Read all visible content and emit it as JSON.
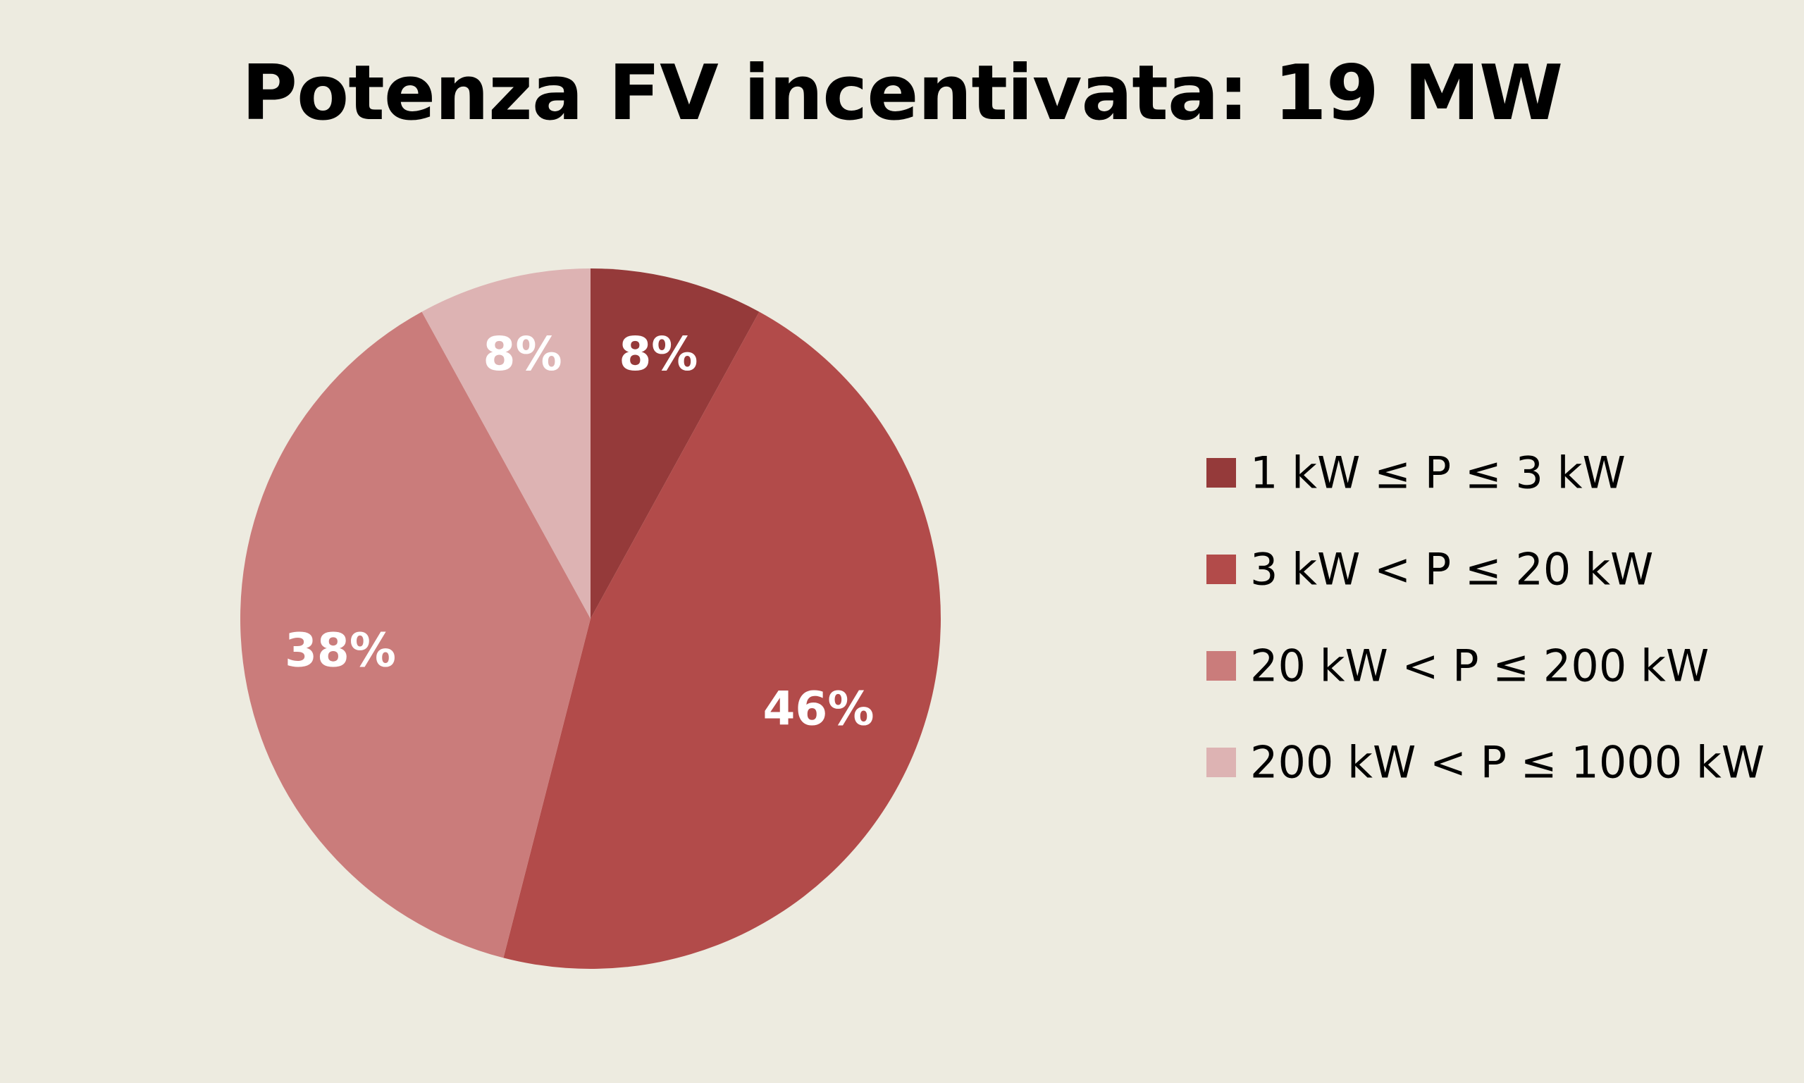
{
  "chart_data": {
    "type": "pie",
    "title": "Potenza FV incentivata: 19 MW",
    "categories": [
      "1 kW ≤ P ≤ 3 kW",
      "3 kW < P ≤ 20 kW",
      "20 kW < P ≤ 200 kW",
      "200 kW < P ≤ 1000 kW"
    ],
    "values": [
      8,
      46,
      38,
      8
    ],
    "labels": [
      "8%",
      "46%",
      "38%",
      "8%"
    ],
    "unit": "%",
    "colors": [
      "#953A3A",
      "#B24B4A",
      "#CA7C7B",
      "#DDB3B3"
    ],
    "legend_position": "right",
    "start_angle": "12 o'clock",
    "direction": "clockwise"
  }
}
